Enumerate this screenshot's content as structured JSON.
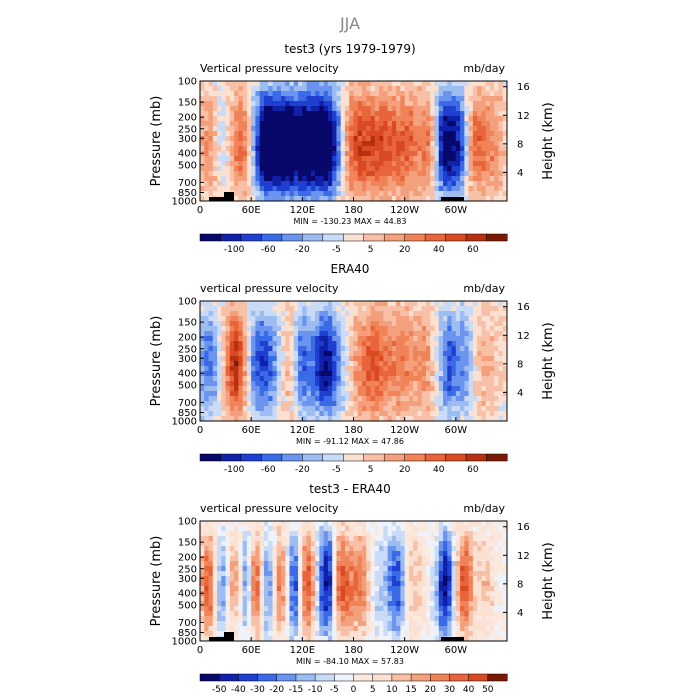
{
  "figure": {
    "title": "JJA"
  },
  "chart_data": [
    {
      "type": "heatmap",
      "title": "test3 (yrs 1979-1979)",
      "left_label": "Vertical pressure velocity",
      "right_label": "mb/day",
      "ylabel": "Pressure (mb)",
      "y2label": "Height (km)",
      "xticks": [
        "0",
        "60E",
        "120E",
        "180",
        "120W",
        "60W"
      ],
      "yticks": [
        "100",
        "150",
        "200",
        "250",
        "300",
        "400",
        "500",
        "700",
        "850",
        "1000"
      ],
      "y2ticks": [
        "4",
        "8",
        "12",
        "16"
      ],
      "stats": "MIN = -130.23   MAX =  44.83",
      "colorbar": {
        "labels": [
          "-100",
          "-60",
          "-20",
          "-5",
          "5",
          "20",
          "40",
          "60"
        ],
        "colors": [
          "#08086b",
          "#1020a8",
          "#1f3fd0",
          "#3a6ae6",
          "#6a94ee",
          "#9cbcf2",
          "#c9dbf7",
          "#fbe1d2",
          "#f8c0a6",
          "#f4a07c",
          "#f08358",
          "#e8643a",
          "#d94a22",
          "#b8300f",
          "#7a1a05"
        ]
      }
    },
    {
      "type": "heatmap",
      "title": "ERA40",
      "left_label": "vertical pressure velocity",
      "right_label": "mb/day",
      "ylabel": "Pressure (mb)",
      "y2label": "Height (km)",
      "xticks": [
        "0",
        "60E",
        "120E",
        "180",
        "120W",
        "60W"
      ],
      "yticks": [
        "100",
        "150",
        "200",
        "250",
        "300",
        "400",
        "500",
        "700",
        "850",
        "1000"
      ],
      "y2ticks": [
        "4",
        "8",
        "12",
        "16"
      ],
      "stats": "MIN = -91.12   MAX =  47.86",
      "colorbar": {
        "labels": [
          "-100",
          "-60",
          "-20",
          "-5",
          "5",
          "20",
          "40",
          "60"
        ],
        "colors": [
          "#08086b",
          "#1020a8",
          "#1f3fd0",
          "#3a6ae6",
          "#6a94ee",
          "#9cbcf2",
          "#c9dbf7",
          "#fbe1d2",
          "#f8c0a6",
          "#f4a07c",
          "#f08358",
          "#e8643a",
          "#d94a22",
          "#b8300f",
          "#7a1a05"
        ]
      }
    },
    {
      "type": "heatmap",
      "title": "test3 - ERA40",
      "left_label": "vertical pressure velocity",
      "right_label": "mb/day",
      "ylabel": "Pressure (mb)",
      "y2label": "Height (km)",
      "xticks": [
        "0",
        "60E",
        "120E",
        "180",
        "120W",
        "60W"
      ],
      "yticks": [
        "100",
        "150",
        "200",
        "250",
        "300",
        "400",
        "500",
        "700",
        "850",
        "1000"
      ],
      "y2ticks": [
        "4",
        "8",
        "12",
        "16"
      ],
      "stats": "MIN = -84.10   MAX =  57.83",
      "colorbar": {
        "labels": [
          "-50",
          "-40",
          "-30",
          "-20",
          "-15",
          "-10",
          "-5",
          "0",
          "5",
          "10",
          "15",
          "20",
          "30",
          "40",
          "50"
        ],
        "colors": [
          "#08086b",
          "#1020a8",
          "#1f3fd0",
          "#3a6ae6",
          "#6a94ee",
          "#9cbcf2",
          "#c9dbf7",
          "#eef3fb",
          "#fbe9df",
          "#fbe1d2",
          "#f8c0a6",
          "#f4a07c",
          "#f08358",
          "#e8643a",
          "#d94a22",
          "#7a1a05"
        ]
      }
    }
  ]
}
